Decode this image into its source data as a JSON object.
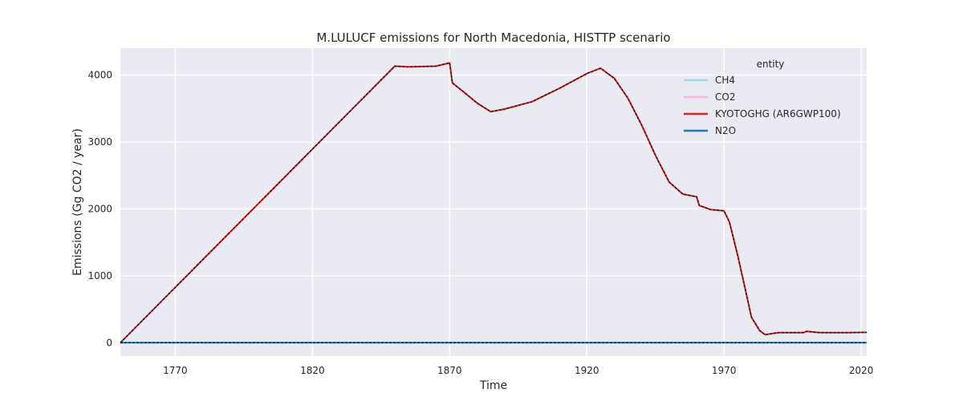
{
  "chart_data": {
    "type": "line",
    "title": "M.LULUCF emissions for North Macedonia, HISTTP scenario",
    "xlabel": "Time",
    "ylabel": "Emissions (Gg CO2 / year)",
    "xlim": [
      1750,
      2022
    ],
    "ylim": [
      -200,
      4400
    ],
    "xticks": [
      1770,
      1820,
      1870,
      1920,
      1970,
      2020
    ],
    "yticks": [
      0,
      1000,
      2000,
      3000,
      4000
    ],
    "grid": true,
    "legend": {
      "title": "entity",
      "placement": "top-right"
    },
    "series": [
      {
        "name": "CH4",
        "color": "#9edae5",
        "x": [
          1750,
          2022
        ],
        "y": [
          0,
          0
        ]
      },
      {
        "name": "CO2",
        "color": "#f7b6d2",
        "x": [
          1750,
          1850,
          1855,
          1865,
          1870,
          1871,
          1875,
          1880,
          1885,
          1890,
          1900,
          1910,
          1920,
          1925,
          1930,
          1935,
          1940,
          1945,
          1950,
          1955,
          1960,
          1961,
          1965,
          1970,
          1972,
          1975,
          1978,
          1980,
          1983,
          1985,
          1988,
          1990,
          1995,
          1999,
          2000,
          2005,
          2010,
          2015,
          2022
        ],
        "y": [
          0,
          4130,
          4120,
          4130,
          4180,
          3880,
          3750,
          3580,
          3450,
          3490,
          3600,
          3800,
          4020,
          4100,
          3950,
          3650,
          3250,
          2800,
          2400,
          2220,
          2180,
          2050,
          1990,
          1970,
          1800,
          1300,
          750,
          380,
          180,
          120,
          140,
          150,
          150,
          150,
          170,
          150,
          150,
          150,
          155
        ]
      },
      {
        "name": "KYOTOGHG (AR6GWP100)",
        "color": "#d62728",
        "x": [
          1750,
          1850,
          1855,
          1865,
          1870,
          1871,
          1875,
          1880,
          1885,
          1890,
          1900,
          1910,
          1920,
          1925,
          1930,
          1935,
          1940,
          1945,
          1950,
          1955,
          1960,
          1961,
          1965,
          1970,
          1972,
          1975,
          1978,
          1980,
          1983,
          1985,
          1988,
          1990,
          1995,
          1999,
          2000,
          2005,
          2010,
          2015,
          2022
        ],
        "y": [
          0,
          4130,
          4120,
          4130,
          4180,
          3880,
          3750,
          3580,
          3450,
          3490,
          3600,
          3800,
          4020,
          4100,
          3950,
          3650,
          3250,
          2800,
          2400,
          2220,
          2180,
          2050,
          1990,
          1970,
          1800,
          1300,
          750,
          380,
          180,
          120,
          140,
          150,
          150,
          150,
          170,
          150,
          150,
          150,
          155
        ]
      },
      {
        "name": "N2O",
        "color": "#1f77b4",
        "x": [
          1750,
          2022
        ],
        "y": [
          0,
          0
        ]
      }
    ]
  }
}
